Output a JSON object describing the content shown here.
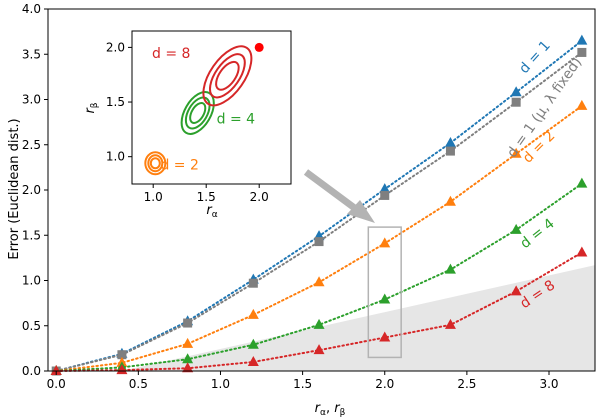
{
  "chart_data": [
    {
      "type": "line",
      "xlabel": "r_α, r_β",
      "ylabel": "Error (Euclidean dist.)",
      "xlim": [
        -0.05,
        3.28
      ],
      "ylim": [
        0,
        4.0
      ],
      "xticks": [
        0.0,
        0.5,
        1.0,
        1.5,
        2.0,
        2.5,
        3.0
      ],
      "xtick_labels": [
        "0.0",
        "0.5",
        "1.0",
        "1.5",
        "2.0",
        "2.5",
        "3.0"
      ],
      "yticks": [
        0.0,
        0.5,
        1.0,
        1.5,
        2.0,
        2.5,
        3.0,
        3.5,
        4.0
      ],
      "ytick_labels": [
        "0.0",
        "0.5",
        "1.0",
        "1.5",
        "2.0",
        "2.5",
        "3.0",
        "3.5",
        "4.0"
      ],
      "x": [
        0.0,
        0.4,
        0.8,
        1.2,
        1.6,
        2.0,
        2.4,
        2.8,
        3.2
      ],
      "grid": false,
      "series": [
        {
          "name": "d = 1",
          "color": "#1f77b4",
          "marker": "triangle",
          "values": [
            0.0,
            0.19,
            0.55,
            1.01,
            1.49,
            2.01,
            2.52,
            3.08,
            3.65
          ]
        },
        {
          "name": "d = 1 (μ, λ fixed)",
          "color": "#7f7f7f",
          "marker": "square",
          "values": [
            0.0,
            0.18,
            0.53,
            0.97,
            1.43,
            1.94,
            2.43,
            2.97,
            3.52
          ]
        },
        {
          "name": "d = 2",
          "color": "#ff7f0e",
          "marker": "triangle",
          "values": [
            0.0,
            0.09,
            0.3,
            0.62,
            0.98,
            1.41,
            1.87,
            2.4,
            2.93
          ]
        },
        {
          "name": "d = 4",
          "color": "#2ca02c",
          "marker": "triangle",
          "values": [
            0.0,
            0.04,
            0.13,
            0.29,
            0.51,
            0.79,
            1.12,
            1.56,
            2.07
          ]
        },
        {
          "name": "d = 8",
          "color": "#d62728",
          "marker": "triangle",
          "values": [
            0.0,
            0.01,
            0.03,
            0.1,
            0.23,
            0.37,
            0.51,
            0.88,
            1.31
          ]
        }
      ],
      "shaded_region": {
        "color": "#e6e6e6",
        "x": [
          0.4,
          3.28
        ],
        "upper": [
          0.0,
          1.17
        ]
      },
      "highlight_box": {
        "x": [
          1.9,
          2.1
        ],
        "y": [
          0.15,
          1.59
        ],
        "color": "#b3b3b3"
      }
    },
    {
      "type": "contour",
      "xlabel": "r_α",
      "ylabel": "r_β",
      "xlim": [
        0.8,
        2.3
      ],
      "ylim": [
        0.75,
        2.15
      ],
      "xticks": [
        1.0,
        1.5,
        2.0
      ],
      "xtick_labels": [
        "1.0",
        "1.5",
        "2.0"
      ],
      "yticks": [
        1.0,
        1.5,
        2.0
      ],
      "ytick_labels": [
        "1.0",
        "1.5",
        "2.0"
      ],
      "true_point": {
        "x": 2.0,
        "y": 2.0,
        "color": "#ff0000"
      },
      "groups": [
        {
          "label": "d = 2",
          "color": "#ff7f0e",
          "center": [
            1.02,
            0.94
          ],
          "label_pos": [
            1.25,
            0.93
          ]
        },
        {
          "label": "d = 4",
          "color": "#2ca02c",
          "center": [
            1.42,
            1.4
          ],
          "label_pos": [
            1.78,
            1.35
          ]
        },
        {
          "label": "d = 8",
          "color": "#d62728",
          "center": [
            1.7,
            1.74
          ],
          "label_pos": [
            1.17,
            1.95
          ]
        }
      ]
    }
  ]
}
